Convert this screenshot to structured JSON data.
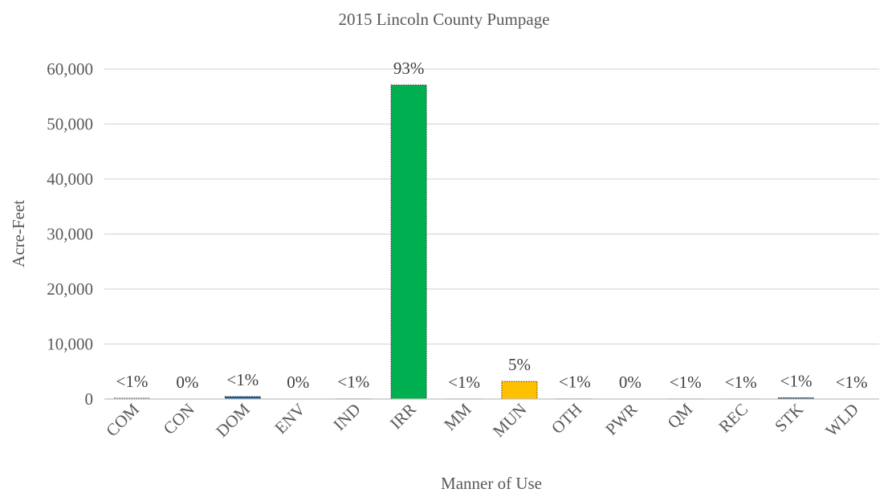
{
  "chart_data": {
    "type": "bar",
    "title": "2015 Lincoln County Pumpage",
    "xlabel": "Manner of Use",
    "ylabel": "Acre-Feet",
    "ylim": [
      0,
      60000
    ],
    "yticks": [
      0,
      10000,
      20000,
      30000,
      40000,
      50000,
      60000
    ],
    "ytick_labels": [
      "0",
      "10,000",
      "20,000",
      "30,000",
      "40,000",
      "50,000",
      "60,000"
    ],
    "grid": true,
    "legend": "none",
    "categories": [
      "COM",
      "CON",
      "DOM",
      "ENV",
      "IND",
      "IRR",
      "MM",
      "MUN",
      "OTH",
      "PWR",
      "QM",
      "REC",
      "STK",
      "WLD"
    ],
    "values": [
      150,
      0,
      450,
      0,
      40,
      57100,
      25,
      3200,
      40,
      0,
      25,
      20,
      220,
      15
    ],
    "data_labels": [
      "<1%",
      "0%",
      "<1%",
      "0%",
      "<1%",
      "93%",
      "<1%",
      "5%",
      "<1%",
      "0%",
      "<1%",
      "<1%",
      "<1%",
      "<1%"
    ],
    "colors": [
      "#c9c9c9",
      "#9e9e9e",
      "#1f5c99",
      "#8fbce6",
      "#5b9bd5",
      "#00b050",
      "#7f7f7f",
      "#ffc000",
      "#a5a5a5",
      "#ed7d31",
      "#bfbfbf",
      "#70ad47",
      "#264478",
      "#4472c4"
    ]
  }
}
